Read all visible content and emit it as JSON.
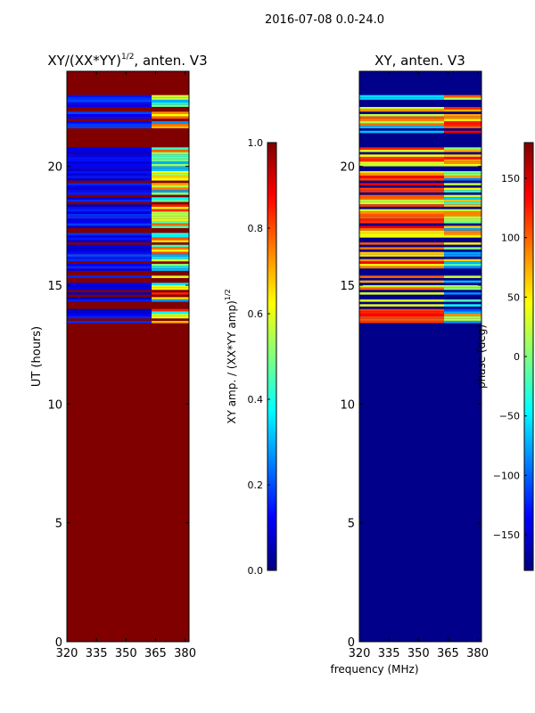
{
  "suptitle": "2016-07-08 0.0-24.0",
  "colors": {
    "amp_background": "#800000",
    "phase_background": "#00008a",
    "jet": [
      "#00007f",
      "#0000ff",
      "#007fff",
      "#00ffff",
      "#7fff7f",
      "#ffff00",
      "#ff7f00",
      "#ff0000",
      "#7f0000"
    ]
  },
  "chart_data": [
    {
      "type": "heatmap",
      "panel": "left",
      "title_main": "XY/(XX*YY)",
      "title_sup": "1/2",
      "title_tail": ", anten. V3",
      "xlabel": "",
      "ylabel": "UT (hours)",
      "xlim": [
        320,
        382
      ],
      "ylim": [
        0,
        24
      ],
      "xticks": [
        "320",
        "335",
        "350",
        "365",
        "380"
      ],
      "xtick_values": [
        320,
        335,
        350,
        365,
        380
      ],
      "yticks": [
        "0",
        "5",
        "10",
        "15",
        "20"
      ],
      "ytick_values": [
        0,
        5,
        10,
        15,
        20
      ],
      "data_start_ut": 13.4,
      "data_end_ut": 23.0,
      "background_value": 1.0,
      "colorbar": {
        "label_main": "XY amp. / (XX*YY amp)",
        "label_sup": "1/2",
        "range": [
          0.0,
          1.0
        ],
        "ticks": [
          "0.0",
          "0.2",
          "0.4",
          "0.6",
          "0.8",
          "1.0"
        ],
        "tick_values": [
          0.0,
          0.2,
          0.4,
          0.6,
          0.8,
          1.0
        ]
      }
    },
    {
      "type": "heatmap",
      "panel": "right",
      "title_main": "XY, anten. V3",
      "xlabel": "frequency (MHz)",
      "ylabel": "",
      "xlim": [
        320,
        382
      ],
      "ylim": [
        0,
        24
      ],
      "xticks": [
        "320",
        "335",
        "350",
        "365",
        "380"
      ],
      "xtick_values": [
        320,
        335,
        350,
        365,
        380
      ],
      "yticks": [
        "0",
        "5",
        "10",
        "15",
        "20"
      ],
      "ytick_values": [
        0,
        5,
        10,
        15,
        20
      ],
      "data_start_ut": 13.4,
      "data_end_ut": 23.0,
      "background_value": -180,
      "colorbar": {
        "label_main": "phase (deg)",
        "range": [
          -180,
          180
        ],
        "ticks": [
          "−150",
          "−100",
          "−50",
          "0",
          "50",
          "100",
          "150"
        ],
        "tick_values": [
          -150,
          -100,
          -50,
          0,
          50,
          100,
          150
        ]
      }
    }
  ]
}
